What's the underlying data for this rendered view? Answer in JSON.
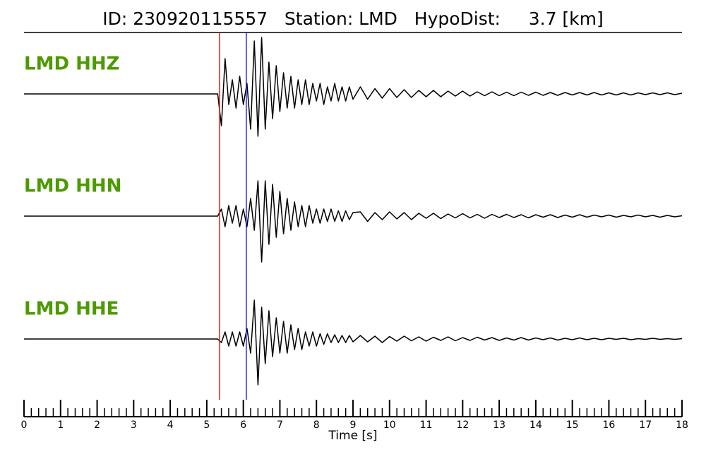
{
  "chart_data": {
    "type": "line",
    "title": "ID: 230920115557   Station: LMD   HypoDist:     3.7 [km]",
    "xlabel": "Time [s]",
    "xlim": [
      0,
      18
    ],
    "xticks": [
      0,
      1,
      2,
      3,
      4,
      5,
      6,
      7,
      8,
      9,
      10,
      11,
      12,
      13,
      14,
      15,
      16,
      17,
      18
    ],
    "xminorticks": [
      0.2,
      0.4,
      0.6,
      0.8,
      1.2,
      1.4,
      1.6,
      1.8,
      2.2,
      2.4,
      2.6,
      2.8,
      3.2,
      3.4,
      3.6,
      3.8,
      4.2,
      4.4,
      4.6,
      4.8,
      5.2,
      5.4,
      5.6,
      5.8,
      6.2,
      6.4,
      6.6,
      6.8,
      7.2,
      7.4,
      7.6,
      7.8,
      8.2,
      8.4,
      8.6,
      8.8,
      9.2,
      9.4,
      9.6,
      9.8,
      10.2,
      10.4,
      10.6,
      10.8,
      11.2,
      11.4,
      11.6,
      11.8,
      12.2,
      12.4,
      12.6,
      12.8,
      13.2,
      13.4,
      13.6,
      13.8,
      14.2,
      14.4,
      14.6,
      14.8,
      15.2,
      15.4,
      15.6,
      15.8,
      16.2,
      16.4,
      16.6,
      16.8,
      17.2,
      17.4,
      17.6,
      17.8
    ],
    "picks": [
      {
        "x": 5.35,
        "color": "#e41a1c"
      },
      {
        "x": 6.08,
        "color": "#2222dd"
      }
    ],
    "x": [
      0,
      5.3,
      5.4,
      5.5,
      5.6,
      5.7,
      5.8,
      5.9,
      6.0,
      6.1,
      6.2,
      6.3,
      6.4,
      6.5,
      6.6,
      6.7,
      6.8,
      6.9,
      7.0,
      7.1,
      7.2,
      7.3,
      7.4,
      7.5,
      7.6,
      7.7,
      7.8,
      7.9,
      8.0,
      8.1,
      8.2,
      8.3,
      8.4,
      8.5,
      8.6,
      8.7,
      8.8,
      8.9,
      9.0,
      9.2,
      9.4,
      9.6,
      9.8,
      10.0,
      10.2,
      10.4,
      10.6,
      10.8,
      11.0,
      11.2,
      11.4,
      11.6,
      11.8,
      12.0,
      12.2,
      12.4,
      12.6,
      12.8,
      13.0,
      13.2,
      13.4,
      13.6,
      13.8,
      14.0,
      14.2,
      14.4,
      14.6,
      14.8,
      15.0,
      15.2,
      15.4,
      15.6,
      15.8,
      16.0,
      16.2,
      16.4,
      16.6,
      16.8,
      17.0,
      17.2,
      17.4,
      17.6,
      17.8,
      18.0
    ],
    "label_color": "#4c9a00",
    "series": [
      {
        "name": "LMD HHZ",
        "color": "#000000",
        "values": [
          0,
          0,
          -0.9,
          1.0,
          -0.3,
          0.4,
          -0.4,
          0.5,
          -0.3,
          0.3,
          -1.0,
          1.5,
          -1.2,
          1.6,
          -1.0,
          0.9,
          -0.7,
          0.8,
          -0.5,
          0.6,
          -0.4,
          0.5,
          -0.4,
          0.4,
          -0.3,
          0.4,
          -0.3,
          0.3,
          -0.2,
          0.3,
          -0.3,
          0.2,
          -0.2,
          0.3,
          -0.2,
          0.2,
          -0.2,
          0.2,
          -0.15,
          0.2,
          -0.15,
          0.15,
          -0.12,
          0.15,
          -0.1,
          0.12,
          -0.1,
          0.1,
          -0.08,
          0.1,
          -0.08,
          0.08,
          -0.06,
          0.08,
          -0.06,
          0.06,
          -0.05,
          0.06,
          -0.05,
          0.05,
          -0.05,
          0.05,
          -0.04,
          0.05,
          -0.04,
          0.04,
          -0.04,
          0.04,
          -0.03,
          0.04,
          -0.03,
          0.04,
          -0.03,
          0.03,
          -0.03,
          0.03,
          -0.03,
          0.03,
          -0.02,
          0.03,
          -0.02,
          0.03,
          -0.02,
          0.02
        ]
      },
      {
        "name": "LMD HHN",
        "color": "#000000",
        "values": [
          0,
          0,
          0.2,
          -0.3,
          0.3,
          -0.2,
          0.3,
          -0.3,
          0.2,
          -0.3,
          0.5,
          -0.4,
          1.0,
          -1.3,
          1.0,
          -0.8,
          0.9,
          -0.6,
          0.7,
          -0.5,
          0.5,
          -0.4,
          0.4,
          -0.3,
          0.3,
          -0.3,
          0.3,
          -0.2,
          0.2,
          -0.2,
          0.2,
          -0.15,
          0.2,
          -0.15,
          0.15,
          -0.15,
          0.15,
          -0.1,
          0.1,
          0.12,
          -0.15,
          0.1,
          -0.1,
          0.12,
          -0.08,
          0.1,
          -0.1,
          0.08,
          -0.06,
          0.08,
          -0.07,
          0.06,
          -0.05,
          0.07,
          -0.05,
          0.05,
          -0.06,
          0.05,
          -0.04,
          0.05,
          -0.04,
          0.04,
          -0.05,
          0.04,
          -0.03,
          0.04,
          -0.04,
          0.03,
          -0.03,
          0.04,
          -0.03,
          0.03,
          -0.02,
          0.03,
          -0.03,
          0.02,
          -0.02,
          0.03,
          -0.02,
          0.02,
          -0.03,
          0.02,
          -0.02,
          0.01
        ]
      },
      {
        "name": "LMD HHE",
        "color": "#000000",
        "values": [
          0,
          0,
          -0.1,
          0.2,
          -0.2,
          0.2,
          -0.2,
          0.2,
          -0.2,
          0.3,
          -0.4,
          1.1,
          -1.3,
          0.9,
          -0.7,
          0.8,
          -0.5,
          0.6,
          -0.4,
          0.5,
          -0.4,
          0.4,
          -0.3,
          0.3,
          -0.3,
          0.2,
          -0.2,
          0.2,
          -0.2,
          0.15,
          -0.15,
          0.15,
          -0.1,
          0.12,
          -0.1,
          0.1,
          -0.1,
          0.1,
          -0.08,
          0.1,
          -0.08,
          0.08,
          -0.1,
          0.07,
          -0.06,
          0.08,
          -0.05,
          0.06,
          -0.06,
          0.05,
          -0.04,
          0.06,
          -0.05,
          0.04,
          -0.04,
          0.05,
          -0.03,
          0.04,
          -0.04,
          0.03,
          -0.03,
          0.04,
          -0.03,
          0.03,
          -0.02,
          0.03,
          -0.03,
          0.02,
          -0.02,
          0.03,
          -0.02,
          0.02,
          -0.02,
          0.02,
          -0.01,
          0.02,
          -0.02,
          0.01,
          -0.01,
          0.02,
          -0.01,
          0.01,
          -0.01,
          0.01
        ]
      }
    ]
  }
}
